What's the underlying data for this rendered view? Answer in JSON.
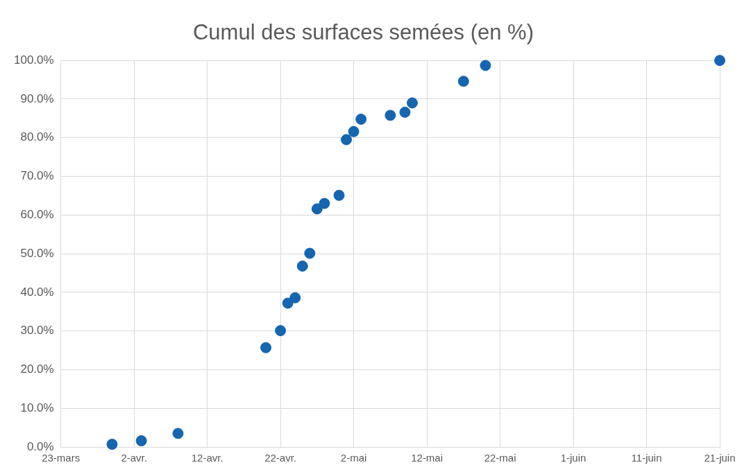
{
  "chart_data": {
    "type": "scatter",
    "title": "Cumul des surfaces semées (en %)",
    "x": [
      "--03-30",
      "--04-03",
      "--04-08",
      "--04-20",
      "--04-22",
      "--04-23",
      "--04-24",
      "--04-25",
      "--04-26",
      "--04-27",
      "--04-28",
      "--04-30",
      "--05-01",
      "--05-02",
      "--05-03",
      "--05-07",
      "--05-09",
      "--05-10",
      "--05-17",
      "--05-20",
      "--06-21"
    ],
    "series": [
      {
        "color": "#1565b0",
        "values": [
          0.7,
          1.6,
          3.5,
          25.7,
          30.1,
          37.2,
          38.6,
          46.8,
          50.1,
          61.6,
          63.0,
          65.1,
          79.5,
          81.6,
          84.8,
          85.8,
          86.6,
          89.0,
          94.6,
          98.7,
          100.0
        ]
      }
    ],
    "xlim": [
      "--03-23",
      "--06-21"
    ],
    "xticks": [
      {
        "value": "--03-23",
        "label": "23-mars"
      },
      {
        "value": "--04-02",
        "label": "2-avr."
      },
      {
        "value": "--04-12",
        "label": "12-avr."
      },
      {
        "value": "--04-22",
        "label": "22-avr."
      },
      {
        "value": "--05-02",
        "label": "2-mai"
      },
      {
        "value": "--05-12",
        "label": "12-mai"
      },
      {
        "value": "--05-22",
        "label": "22-mai"
      },
      {
        "value": "--06-01",
        "label": "1-juin"
      },
      {
        "value": "--06-11",
        "label": "11-juin"
      },
      {
        "value": "--06-21",
        "label": "21-juin"
      }
    ],
    "ylim": [
      0,
      100
    ],
    "yticks": [
      {
        "value": 0,
        "label": "0.0%"
      },
      {
        "value": 10,
        "label": "10.0%"
      },
      {
        "value": 20,
        "label": "20.0%"
      },
      {
        "value": 30,
        "label": "30.0%"
      },
      {
        "value": 40,
        "label": "40.0%"
      },
      {
        "value": 50,
        "label": "50.0%"
      },
      {
        "value": 60,
        "label": "60.0%"
      },
      {
        "value": 70,
        "label": "70.0%"
      },
      {
        "value": 80,
        "label": "80.0%"
      },
      {
        "value": 90,
        "label": "90.0%"
      },
      {
        "value": 100,
        "label": "100.0%"
      }
    ],
    "grid": true,
    "marker": "circle",
    "legend": false
  }
}
